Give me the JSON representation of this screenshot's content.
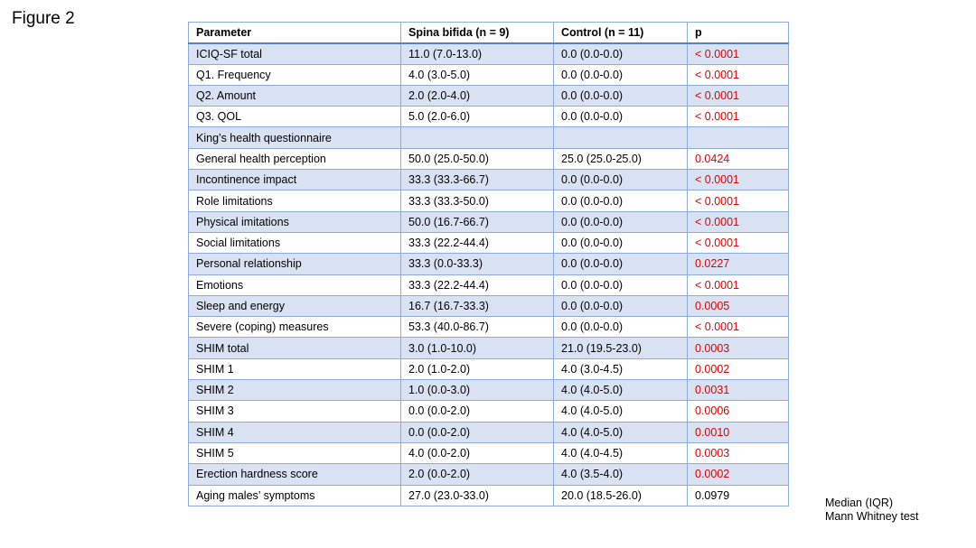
{
  "figure_label": "Figure 2",
  "table": {
    "headers": [
      "Parameter",
      "Spina bifida (n = 9)",
      "Control (n = 11)",
      "p"
    ],
    "rows": [
      {
        "parameter": "ICIQ-SF total",
        "indent": 0,
        "spina_bifida": "11.0 (7.0-13.0)",
        "control": "0.0 (0.0-0.0)",
        "p": "< 0.0001",
        "significant": true
      },
      {
        "parameter": "Q1. Frequency",
        "indent": 2,
        "spina_bifida": "4.0 (3.0-5.0)",
        "control": "0.0 (0.0-0.0)",
        "p": "< 0.0001",
        "significant": true
      },
      {
        "parameter": "Q2. Amount",
        "indent": 2,
        "spina_bifida": "2.0 (2.0-4.0)",
        "control": "0.0 (0.0-0.0)",
        "p": "< 0.0001",
        "significant": true
      },
      {
        "parameter": "Q3. QOL",
        "indent": 2,
        "spina_bifida": "5.0 (2.0-6.0)",
        "control": "0.0 (0.0-0.0)",
        "p": "< 0.0001",
        "significant": true
      },
      {
        "parameter": "King’s health questionnaire",
        "indent": 0,
        "spina_bifida": "",
        "control": "",
        "p": "",
        "significant": false
      },
      {
        "parameter": "General health perception",
        "indent": 1,
        "spina_bifida": "50.0 (25.0-50.0)",
        "control": "25.0 (25.0-25.0)",
        "p": "0.0424",
        "significant": true
      },
      {
        "parameter": "Incontinence impact",
        "indent": 1,
        "spina_bifida": "33.3 (33.3-66.7)",
        "control": "0.0 (0.0-0.0)",
        "p": "< 0.0001",
        "significant": true
      },
      {
        "parameter": "Role limitations",
        "indent": 1,
        "spina_bifida": "33.3 (33.3-50.0)",
        "control": "0.0 (0.0-0.0)",
        "p": "< 0.0001",
        "significant": true
      },
      {
        "parameter": "Physical imitations",
        "indent": 1,
        "spina_bifida": "50.0 (16.7-66.7)",
        "control": "0.0 (0.0-0.0)",
        "p": "< 0.0001",
        "significant": true
      },
      {
        "parameter": "Social limitations",
        "indent": 1,
        "spina_bifida": "33.3 (22.2-44.4)",
        "control": "0.0 (0.0-0.0)",
        "p": "< 0.0001",
        "significant": true
      },
      {
        "parameter": "Personal relationship",
        "indent": 1,
        "spina_bifida": "33.3 (0.0-33.3)",
        "control": "0.0 (0.0-0.0)",
        "p": "0.0227",
        "significant": true
      },
      {
        "parameter": "Emotions",
        "indent": 1,
        "spina_bifida": "33.3 (22.2-44.4)",
        "control": "0.0 (0.0-0.0)",
        "p": "< 0.0001",
        "significant": true
      },
      {
        "parameter": "Sleep and energy",
        "indent": 1,
        "spina_bifida": "16.7 (16.7-33.3)",
        "control": "0.0 (0.0-0.0)",
        "p": "0.0005",
        "significant": true
      },
      {
        "parameter": "Severe (coping) measures",
        "indent": 1,
        "spina_bifida": "53.3 (40.0-86.7)",
        "control": "0.0 (0.0-0.0)",
        "p": "< 0.0001",
        "significant": true
      },
      {
        "parameter": "SHIM total",
        "indent": 0,
        "spina_bifida": "3.0 (1.0-10.0)",
        "control": "21.0 (19.5-23.0)",
        "p": "0.0003",
        "significant": true
      },
      {
        "parameter": "SHIM 1",
        "indent": 1,
        "spina_bifida": "2.0 (1.0-2.0)",
        "control": "4.0 (3.0-4.5)",
        "p": "0.0002",
        "significant": true
      },
      {
        "parameter": "SHIM 2",
        "indent": 1,
        "spina_bifida": "1.0 (0.0-3.0)",
        "control": "4.0 (4.0-5.0)",
        "p": "0.0031",
        "significant": true
      },
      {
        "parameter": "SHIM 3",
        "indent": 1,
        "spina_bifida": "0.0 (0.0-2.0)",
        "control": "4.0 (4.0-5.0)",
        "p": "0.0006",
        "significant": true
      },
      {
        "parameter": "SHIM 4",
        "indent": 1,
        "spina_bifida": "0.0 (0.0-2.0)",
        "control": "4.0 (4.0-5.0)",
        "p": "0.0010",
        "significant": true
      },
      {
        "parameter": "SHIM 5",
        "indent": 1,
        "spina_bifida": "4.0 (0.0-2.0)",
        "control": "4.0 (4.0-4.5)",
        "p": "0.0003",
        "significant": true
      },
      {
        "parameter": "Erection hardness score",
        "indent": 0,
        "spina_bifida": "2.0 (0.0-2.0)",
        "control": "4.0 (3.5-4.0)",
        "p": "0.0002",
        "significant": true
      },
      {
        "parameter": "Aging males’ symptoms",
        "indent": 0,
        "spina_bifida": "27.0 (23.0-33.0)",
        "control": "20.0 (18.5-26.0)",
        "p": "0.0979",
        "significant": false
      }
    ]
  },
  "notes": {
    "line1": "Median (IQR)",
    "line2": "Mann Whitney test"
  },
  "colors": {
    "significant_p": "#e00000",
    "band": "#d9e2f3",
    "border": "#8eaadb"
  }
}
